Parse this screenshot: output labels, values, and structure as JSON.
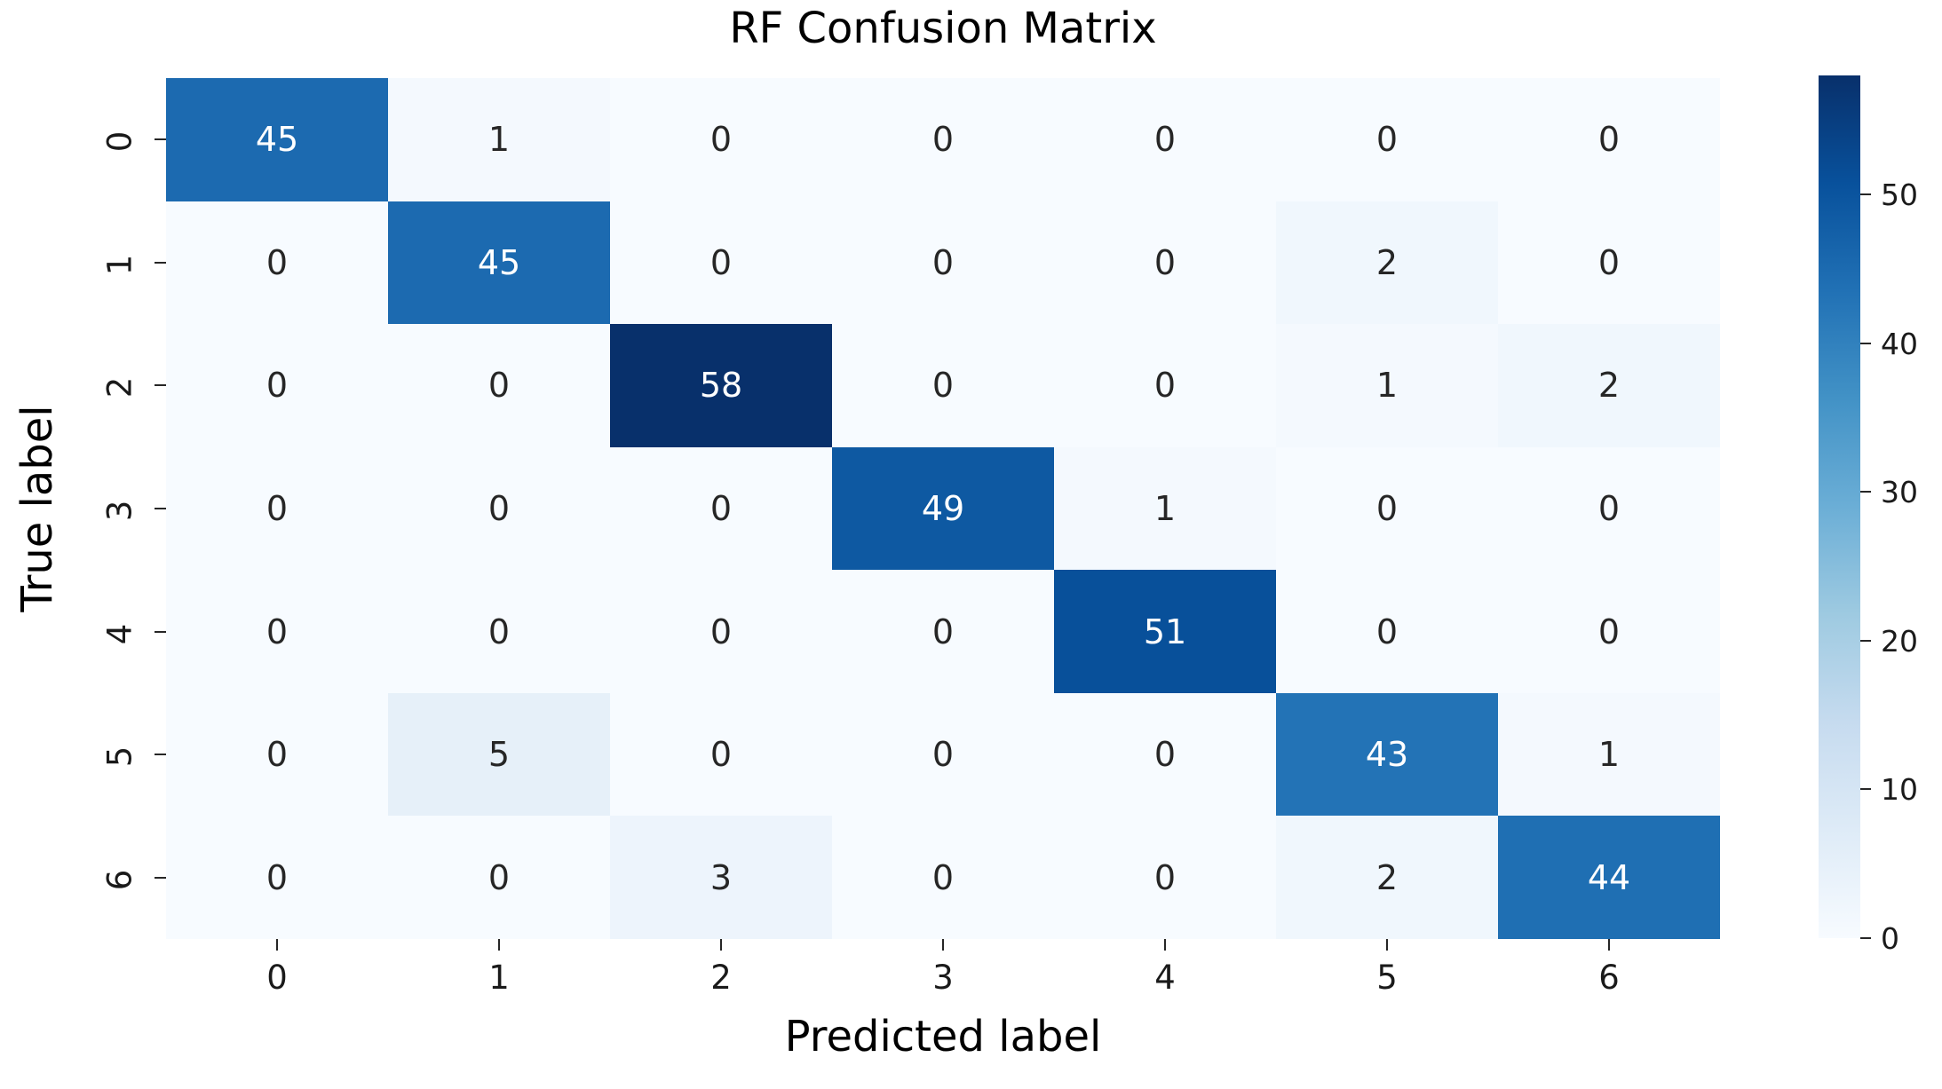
{
  "title": "RF Confusion Matrix",
  "xlabel": "Predicted label",
  "ylabel": "True label",
  "x_tick_labels": [
    "0",
    "1",
    "2",
    "3",
    "4",
    "5",
    "6"
  ],
  "y_tick_labels": [
    "0",
    "1",
    "2",
    "3",
    "4",
    "5",
    "6"
  ],
  "chart_data": {
    "type": "heatmap",
    "title": "RF Confusion Matrix",
    "xlabel": "Predicted label",
    "ylabel": "True label",
    "rows": [
      "0",
      "1",
      "2",
      "3",
      "4",
      "5",
      "6"
    ],
    "cols": [
      "0",
      "1",
      "2",
      "3",
      "4",
      "5",
      "6"
    ],
    "matrix": [
      [
        45,
        1,
        0,
        0,
        0,
        0,
        0
      ],
      [
        0,
        45,
        0,
        0,
        0,
        2,
        0
      ],
      [
        0,
        0,
        58,
        0,
        0,
        1,
        2
      ],
      [
        0,
        0,
        0,
        49,
        1,
        0,
        0
      ],
      [
        0,
        0,
        0,
        0,
        51,
        0,
        0
      ],
      [
        0,
        5,
        0,
        0,
        0,
        43,
        1
      ],
      [
        0,
        0,
        3,
        0,
        0,
        2,
        44
      ]
    ],
    "vmin": 0,
    "vmax": 58,
    "colormap": "Blues",
    "colorbar_ticks": [
      0,
      10,
      20,
      30,
      40,
      50
    ],
    "legend_position": "right-colorbar",
    "grid": false
  },
  "colors": {
    "blues_anchors": [
      [
        0.0,
        "#f7fbff"
      ],
      [
        0.125,
        "#deebf7"
      ],
      [
        0.25,
        "#c6dbef"
      ],
      [
        0.375,
        "#9ecae1"
      ],
      [
        0.5,
        "#6baed6"
      ],
      [
        0.625,
        "#4292c6"
      ],
      [
        0.75,
        "#2171b5"
      ],
      [
        0.875,
        "#08519c"
      ],
      [
        1.0,
        "#08306b"
      ]
    ],
    "annotation_dark_text": "#262626",
    "annotation_light_text": "#ffffff",
    "tick_color": "#262626"
  }
}
